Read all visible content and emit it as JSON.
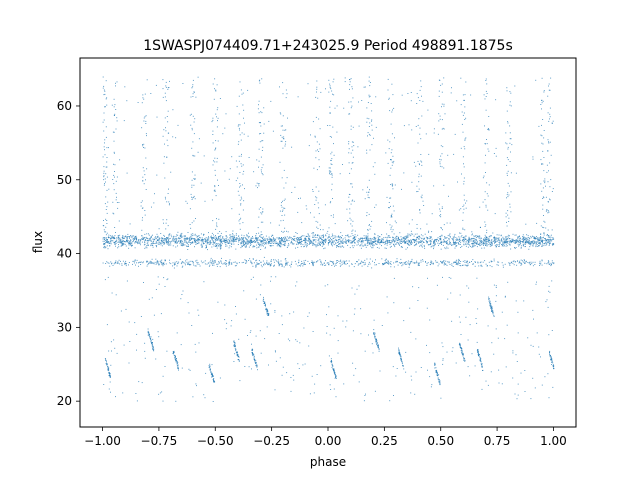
{
  "chart_data": {
    "type": "scatter",
    "title": "1SWASPJ074409.71+243025.9 Period 498891.1875s",
    "xlabel": "phase",
    "ylabel": "flux",
    "xlim": [
      -1.1,
      1.1
    ],
    "ylim": [
      16.5,
      66.5
    ],
    "x_ticks": [
      -1.0,
      -0.75,
      -0.5,
      -0.25,
      0.0,
      0.25,
      0.5,
      0.75,
      1.0
    ],
    "x_tick_labels": [
      "−1.00",
      "−0.75",
      "−0.50",
      "−0.25",
      "0.00",
      "0.25",
      "0.50",
      "0.75",
      "1.00"
    ],
    "y_ticks": [
      20,
      30,
      40,
      50,
      60
    ],
    "y_tick_labels": [
      "20",
      "30",
      "40",
      "50",
      "60"
    ],
    "grid": false,
    "marker_color": "#1f77b4",
    "series_summary": [
      {
        "phase_range": [
          -1.0,
          1.0
        ],
        "flux_center": 41.8,
        "flux_spread": 0.9,
        "description": "dense main band"
      },
      {
        "phase_range": [
          -1.0,
          1.0
        ],
        "flux_center": 38.8,
        "flux_spread": 0.5,
        "description": "lower secondary band"
      },
      {
        "phase_range": [
          -1.0,
          1.0
        ],
        "flux_range": [
          43,
          64
        ],
        "description": "sparse upward scatter"
      },
      {
        "phase_range": [
          -1.0,
          1.0
        ],
        "flux_range": [
          20,
          37
        ],
        "description": "sparse downward scatter and dip tracks"
      }
    ]
  }
}
